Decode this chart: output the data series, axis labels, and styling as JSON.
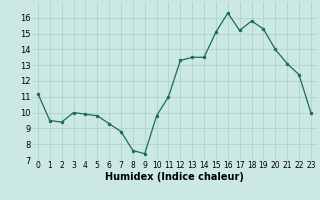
{
  "x": [
    0,
    1,
    2,
    3,
    4,
    5,
    6,
    7,
    8,
    9,
    10,
    11,
    12,
    13,
    14,
    15,
    16,
    17,
    18,
    19,
    20,
    21,
    22,
    23
  ],
  "y": [
    11.2,
    9.5,
    9.4,
    10.0,
    9.9,
    9.8,
    9.3,
    8.8,
    7.6,
    7.4,
    9.8,
    11.0,
    13.3,
    13.5,
    13.5,
    15.1,
    16.3,
    15.2,
    15.8,
    15.3,
    14.0,
    13.1,
    12.4,
    10.0
  ],
  "xlabel": "Humidex (Indice chaleur)",
  "ylim": [
    7,
    17
  ],
  "xlim": [
    -0.5,
    23.5
  ],
  "yticks": [
    7,
    8,
    9,
    10,
    11,
    12,
    13,
    14,
    15,
    16
  ],
  "xtick_labels": [
    "0",
    "1",
    "2",
    "3",
    "4",
    "5",
    "6",
    "7",
    "8",
    "9",
    "10",
    "11",
    "12",
    "13",
    "14",
    "15",
    "16",
    "17",
    "18",
    "19",
    "20",
    "21",
    "22",
    "23"
  ],
  "line_color": "#1a6b5a",
  "marker_color": "#1a6b5a",
  "bg_color": "#cce8e4",
  "grid_color": "#aacfcc",
  "xlabel_fontsize": 7,
  "ytick_fontsize": 6,
  "xtick_fontsize": 5.5
}
